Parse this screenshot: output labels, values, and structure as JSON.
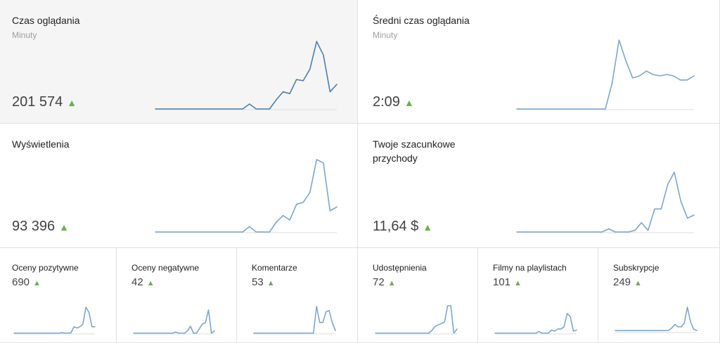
{
  "colors": {
    "accent": "#6ab04c",
    "line_selected": "#4a7fb0",
    "line": "#7ea6cc",
    "baseline": "#dddddd"
  },
  "metrics": {
    "watch_time": {
      "title": "Czas oglądania",
      "subtitle": "Minuty",
      "value": "201 574",
      "trend": "▲",
      "series": [
        0,
        0,
        0,
        0,
        0,
        0,
        0,
        0,
        0,
        0,
        0,
        0,
        0,
        0,
        8,
        0,
        0,
        0,
        15,
        28,
        25,
        48,
        46,
        65,
        110,
        88,
        28,
        40
      ]
    },
    "avg_duration": {
      "title": "Średni czas oglądania",
      "subtitle": "Minuty",
      "value": "2:09",
      "trend": "▲",
      "series": [
        0,
        0,
        0,
        0,
        0,
        0,
        0,
        0,
        0,
        0,
        0,
        0,
        0,
        0,
        38,
        100,
        70,
        45,
        48,
        55,
        50,
        48,
        50,
        48,
        42,
        42,
        48
      ]
    },
    "views": {
      "title": "Wyświetlenia",
      "value": "93 396",
      "trend": "▲",
      "series": [
        0,
        0,
        0,
        0,
        0,
        0,
        0,
        0,
        0,
        0,
        0,
        0,
        0,
        0,
        8,
        0,
        0,
        0,
        15,
        25,
        18,
        42,
        45,
        60,
        110,
        105,
        32,
        38
      ]
    },
    "revenue": {
      "title": "Twoje szacunkowe przychody",
      "value": "11,64 $",
      "trend": "▲",
      "series": [
        0,
        0,
        0,
        0,
        0,
        0,
        0,
        0,
        0,
        0,
        0,
        0,
        0,
        0,
        4,
        0,
        0,
        0,
        2,
        12,
        2,
        30,
        30,
        62,
        78,
        40,
        18,
        22
      ]
    }
  },
  "small_metrics": [
    {
      "title": "Oceny pozytywne",
      "value": "690",
      "trend": "▲",
      "series": [
        0,
        0,
        0,
        0,
        0,
        0,
        0,
        0,
        0,
        0,
        0,
        0,
        0,
        0,
        0,
        0,
        2,
        0,
        0,
        1,
        25,
        20,
        25,
        35,
        100,
        80,
        25,
        25
      ]
    },
    {
      "title": "Oceny negatywne",
      "value": "42",
      "trend": "▲",
      "series": [
        0,
        0,
        0,
        0,
        0,
        0,
        0,
        0,
        0,
        0,
        0,
        0,
        0,
        0,
        5,
        0,
        0,
        0,
        10,
        30,
        0,
        0,
        20,
        40,
        45,
        100,
        0,
        10
      ]
    },
    {
      "title": "Komentarze",
      "value": "53",
      "trend": "▲",
      "series": [
        0,
        0,
        0,
        0,
        0,
        0,
        0,
        0,
        0,
        0,
        0,
        0,
        0,
        0,
        0,
        0,
        0,
        0,
        0,
        0,
        100,
        40,
        40,
        80,
        85,
        40,
        10
      ]
    },
    {
      "title": "Udostępnienia",
      "value": "72",
      "trend": "▲",
      "series": [
        0,
        0,
        0,
        0,
        0,
        0,
        0,
        0,
        0,
        0,
        0,
        0,
        0,
        0,
        0,
        0,
        0,
        0,
        10,
        25,
        30,
        35,
        40,
        100,
        100,
        0,
        15
      ]
    },
    {
      "title": "Filmy na playlistach",
      "value": "101",
      "trend": "▲",
      "series": [
        0,
        0,
        0,
        0,
        0,
        0,
        0,
        0,
        0,
        0,
        0,
        0,
        0,
        0,
        8,
        0,
        0,
        0,
        15,
        10,
        20,
        20,
        30,
        95,
        80,
        10,
        15
      ]
    },
    {
      "title": "Subskrypcje",
      "value": "249",
      "trend": "▲",
      "series": [
        5,
        5,
        5,
        5,
        5,
        5,
        5,
        5,
        5,
        5,
        5,
        5,
        5,
        5,
        5,
        5,
        5,
        5,
        15,
        30,
        20,
        20,
        35,
        100,
        40,
        10,
        5
      ]
    }
  ]
}
